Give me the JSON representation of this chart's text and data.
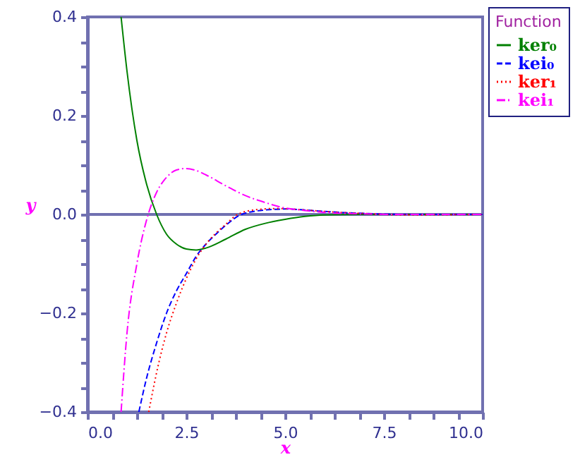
{
  "chart_data": {
    "type": "line",
    "xlabel": "x",
    "ylabel": "y",
    "legend_title": "Function",
    "legend": "top right",
    "grid": false,
    "xlim": [
      0,
      10
    ],
    "ylim": [
      -0.4,
      0.4
    ],
    "xticks": [
      {
        "value": 0,
        "label": "0.0"
      },
      {
        "value": 0.625,
        "label": null
      },
      {
        "value": 1.25,
        "label": null
      },
      {
        "value": 1.875,
        "label": null
      },
      2.5,
      {
        "value": 3.125,
        "label": null
      },
      {
        "value": 3.75,
        "label": null
      },
      {
        "value": 4.375,
        "label": null
      },
      {
        "value": 5,
        "label": "5.0"
      },
      {
        "value": 5.625,
        "label": null
      },
      {
        "value": 6.25,
        "label": null
      },
      {
        "value": 6.875,
        "label": null
      },
      7.5,
      {
        "value": 8.125,
        "label": null
      },
      {
        "value": 8.75,
        "label": null
      },
      {
        "value": 9.375,
        "label": null
      },
      {
        "value": 10,
        "label": "10.0"
      }
    ],
    "yticks": [
      -0.4,
      {
        "value": -0.35,
        "label": null
      },
      {
        "value": -0.3,
        "label": null
      },
      {
        "value": -0.25,
        "label": null
      },
      -0.2,
      {
        "value": -0.15,
        "label": null
      },
      {
        "value": -0.1,
        "label": null
      },
      {
        "value": -0.05,
        "label": null
      },
      {
        "value": 0,
        "label": "0.0"
      },
      {
        "value": 0.05,
        "label": null
      },
      {
        "value": 0.1,
        "label": null
      },
      {
        "value": 0.15,
        "label": null
      },
      0.2,
      {
        "value": 0.25,
        "label": null
      },
      {
        "value": 0.3,
        "label": null
      },
      {
        "value": 0.35,
        "label": null
      },
      0.4
    ],
    "ref_lines": [
      {
        "axis": "y",
        "value": 0,
        "color": "#7070b0"
      }
    ],
    "series": [
      {
        "name": "ker₀",
        "color": "#008000",
        "line_style": "solid",
        "x": [
          0.85,
          1,
          1.25,
          1.5,
          1.75,
          2,
          2.25,
          2.5,
          2.75,
          3,
          3.5,
          4,
          4.5,
          5,
          5.5,
          6,
          7,
          8,
          10
        ],
        "values": [
          0.4,
          0.29,
          0.15,
          0.06,
          0,
          -0.04,
          -0.06,
          -0.07,
          -0.072,
          -0.068,
          -0.05,
          -0.03,
          -0.018,
          -0.01,
          -0.004,
          -0.001,
          0,
          0,
          0
        ]
      },
      {
        "name": "kei₀",
        "color": "#0000ff",
        "line_style": "dashed",
        "x": [
          1.3,
          1.5,
          1.75,
          2,
          2.25,
          2.5,
          2.75,
          3,
          3.25,
          3.5,
          3.9,
          4.5,
          5,
          5.5,
          6,
          7,
          8,
          10
        ],
        "values": [
          -0.4,
          -0.33,
          -0.26,
          -0.2,
          -0.155,
          -0.12,
          -0.085,
          -0.06,
          -0.04,
          -0.022,
          0,
          0.009,
          0.011,
          0.009,
          0.006,
          0.002,
          0,
          0
        ]
      },
      {
        "name": "ker₁",
        "color": "#ff0000",
        "line_style": "dotted",
        "x": [
          1.55,
          1.75,
          2,
          2.25,
          2.5,
          2.75,
          3,
          3.25,
          3.5,
          3.8,
          4.3,
          4.8,
          5.5,
          6,
          7,
          8,
          10
        ],
        "values": [
          -0.4,
          -0.32,
          -0.24,
          -0.18,
          -0.13,
          -0.09,
          -0.06,
          -0.038,
          -0.02,
          0,
          0.01,
          0.012,
          0.009,
          0.006,
          0.002,
          -0.001,
          0
        ]
      },
      {
        "name": "kei₁",
        "color": "#ff00ff",
        "line_style": "dashdot",
        "x": [
          0.85,
          1,
          1.25,
          1.5,
          1.75,
          2,
          2.25,
          2.5,
          2.75,
          3,
          3.5,
          4,
          4.5,
          5,
          5.5,
          6,
          7,
          8,
          10
        ],
        "values": [
          -0.4,
          -0.24,
          -0.1,
          -0.01,
          0.045,
          0.075,
          0.09,
          0.093,
          0.089,
          0.08,
          0.058,
          0.038,
          0.024,
          0.013,
          0.008,
          0.004,
          0.001,
          0,
          0
        ]
      }
    ]
  }
}
